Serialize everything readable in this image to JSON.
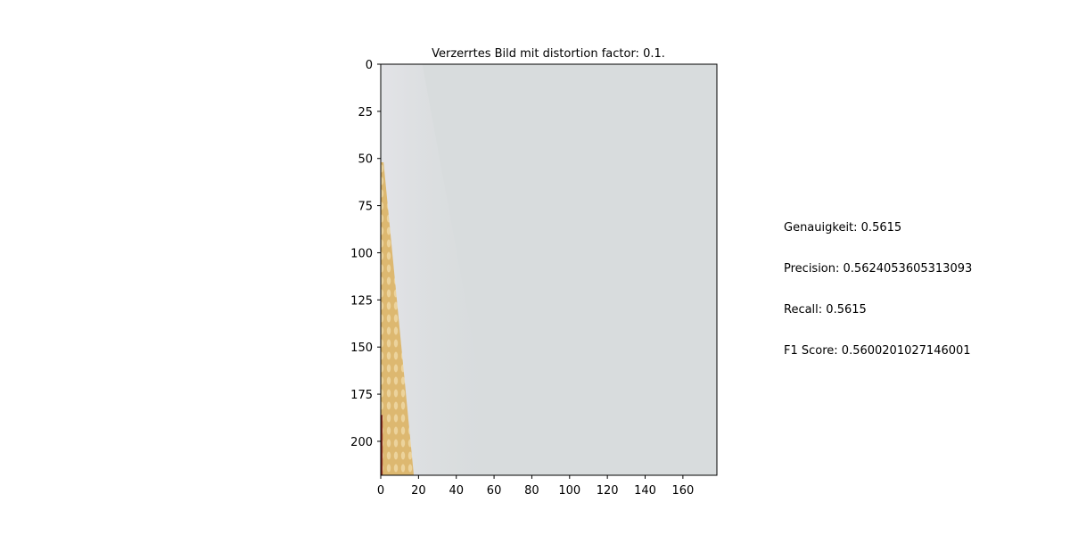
{
  "chart_data": {
    "type": "image",
    "title": "Verzerrtes Bild mit distortion factor: 0.1.",
    "xlabel": "",
    "ylabel": "",
    "xlim": [
      0,
      178
    ],
    "ylim": [
      218,
      0
    ],
    "x_ticks": [
      0,
      20,
      40,
      60,
      80,
      100,
      120,
      140,
      160
    ],
    "y_ticks": [
      0,
      25,
      50,
      75,
      100,
      125,
      150,
      175,
      200
    ],
    "grid": false,
    "image_colors": {
      "background": "#d8dcdd",
      "shadow": "#dcdce0",
      "stripe": "#d8b46e",
      "edge": "#8c2f22"
    }
  },
  "metrics": {
    "accuracy": "Genauigkeit: 0.5615",
    "precision": "Precision: 0.5624053605313093",
    "recall": "Recall: 0.5615",
    "f1": "F1 Score: 0.5600201027146001"
  }
}
